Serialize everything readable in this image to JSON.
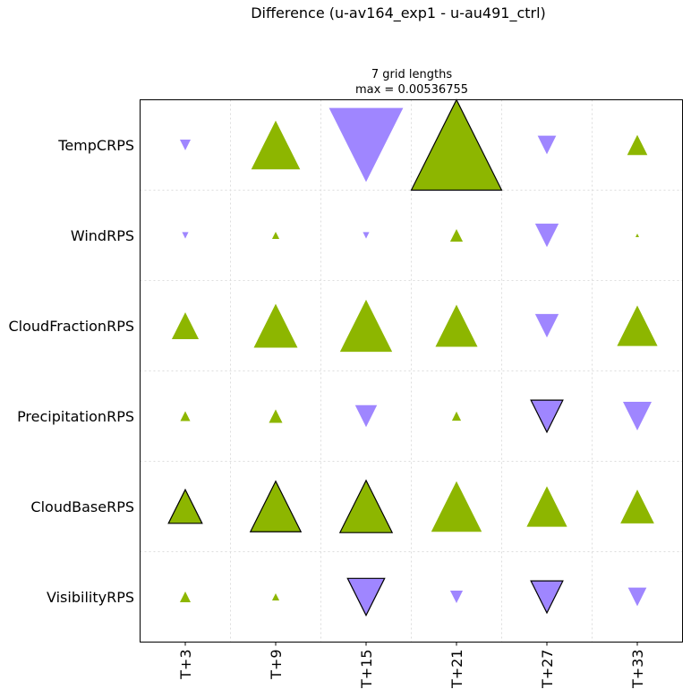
{
  "chart_data": {
    "type": "triangle-grid",
    "title": "Difference (u-av164_exp1 - u-au491_ctrl)",
    "subtitle_line1": "7 grid lengths",
    "subtitle_line2": "max = 0.00536755",
    "max": 0.00536755,
    "columns": [
      "T+3",
      "T+9",
      "T+15",
      "T+21",
      "T+27",
      "T+33"
    ],
    "rows": [
      "TempCRPS",
      "WindRPS",
      "CloudFractionRPS",
      "PrecipitationRPS",
      "CloudBaseRPS",
      "VisibilityRPS"
    ],
    "values": [
      [
        -0.00064,
        0.0029,
        -0.0044,
        0.00536755,
        -0.0011,
        0.0012
      ],
      [
        -0.00038,
        0.00043,
        -0.00038,
        0.00075,
        -0.0014,
        0.00021
      ],
      [
        0.0016,
        0.0026,
        0.0031,
        0.0025,
        -0.0014,
        0.0024
      ],
      [
        0.00059,
        0.0008,
        -0.0013,
        0.00054,
        -0.0019,
        -0.0017
      ],
      [
        0.002,
        0.003,
        0.0031,
        0.003,
        0.0024,
        0.002
      ],
      [
        0.00064,
        0.00043,
        -0.0022,
        -0.00075,
        -0.0019,
        -0.0011
      ]
    ],
    "significant": [
      [
        false,
        false,
        false,
        true,
        false,
        false
      ],
      [
        false,
        false,
        false,
        false,
        false,
        false
      ],
      [
        false,
        false,
        false,
        false,
        false,
        false
      ],
      [
        false,
        false,
        false,
        false,
        true,
        false
      ],
      [
        true,
        true,
        true,
        false,
        false,
        false
      ],
      [
        false,
        false,
        true,
        false,
        true,
        false
      ]
    ],
    "positive_marker": "up-triangle",
    "negative_marker": "down-triangle",
    "colors": {
      "positive": "#8db600",
      "negative": "#9f86ff",
      "outline": "#000000",
      "grid": "#dddddd"
    },
    "grid": true
  }
}
